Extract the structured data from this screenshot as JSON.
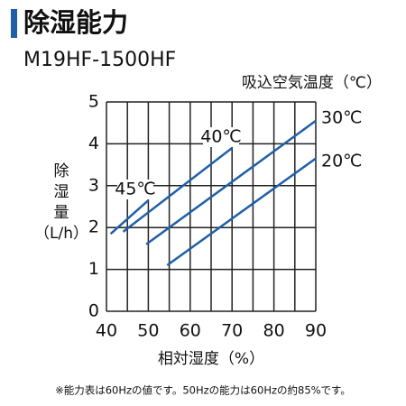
{
  "chart_data": {
    "type": "line",
    "title": "除湿能力",
    "subtitle": "M19HF-1500HF",
    "legend_title": "吸込空気温度（℃）",
    "x_label": "相対湿度（%）",
    "y_label": [
      "除",
      "湿",
      "量",
      "（L/h）"
    ],
    "footnote": "※能力表は60Hzの値です。50Hzの能力は60Hzの約85%です。",
    "xlim": [
      40,
      90
    ],
    "xticks": [
      40,
      50,
      60,
      70,
      80,
      90
    ],
    "xminor": [
      45,
      55,
      65,
      75,
      85
    ],
    "ylim": [
      0,
      5
    ],
    "yticks": [
      0,
      1,
      2,
      3,
      4,
      5
    ],
    "grid": true,
    "series": [
      {
        "name": "45℃",
        "color": "#1f5fa8",
        "x": [
          41,
          50
        ],
        "values": [
          1.85,
          2.65
        ]
      },
      {
        "name": "40℃",
        "color": "#1f5fa8",
        "x": [
          44,
          70
        ],
        "values": [
          1.9,
          3.9
        ]
      },
      {
        "name": "30℃",
        "color": "#1f5fa8",
        "x": [
          49.5,
          90
        ],
        "values": [
          1.6,
          4.55
        ]
      },
      {
        "name": "20℃",
        "color": "#1f5fa8",
        "x": [
          54.5,
          90
        ],
        "values": [
          1.1,
          3.65
        ]
      }
    ]
  }
}
